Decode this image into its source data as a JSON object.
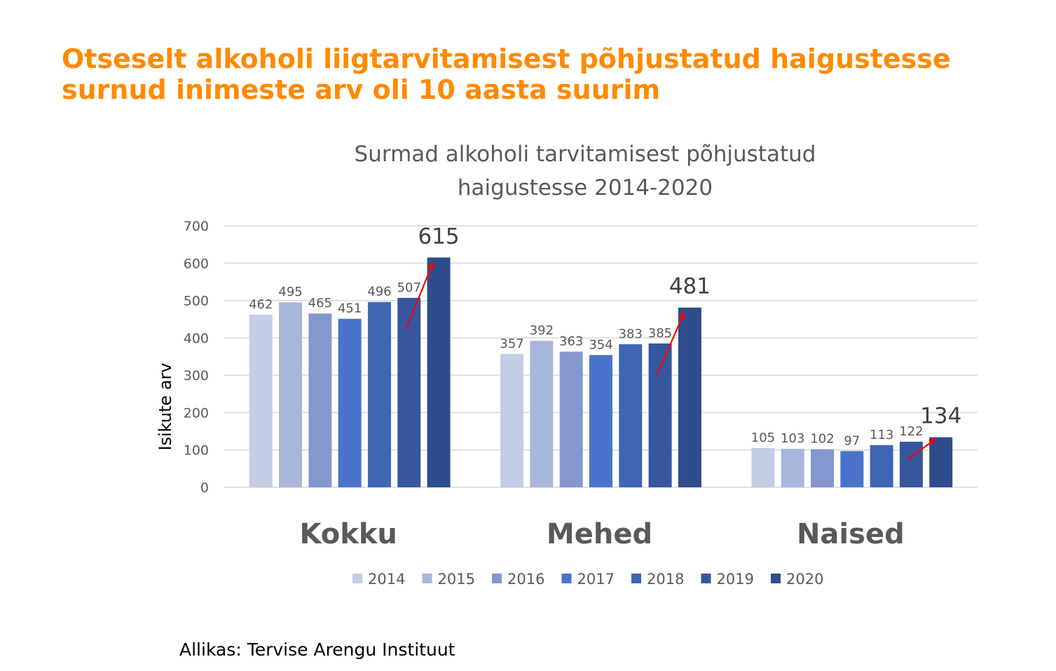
{
  "headline": "Otseselt alkoholi liigtarvitamisest põhjustatud haigustesse surnud inimeste arv oli 10 aasta suurim",
  "source": "Allikas: Tervise Arengu Instituut",
  "colors": {
    "headline": "#ff8a00",
    "trend_arrow": "#ff0000",
    "grid": "#d9d9d9",
    "title_text": "#595959",
    "tick_text": "#595959"
  },
  "chart_data": {
    "type": "bar",
    "title_lines": [
      "Surmad alkoholi tarvitamisest põhjustatud",
      "haigustesse 2014-2020"
    ],
    "ylabel": "Isikute arv",
    "xlabel": "",
    "ylim": [
      0,
      700
    ],
    "yticks": [
      0,
      100,
      200,
      300,
      400,
      500,
      600,
      700
    ],
    "grid": true,
    "legend_position": "bottom",
    "categories": [
      "Kokku",
      "Mehed",
      "Naised"
    ],
    "series": [
      {
        "name": "2014",
        "color": "#c3cde6",
        "values": [
          462,
          357,
          105
        ]
      },
      {
        "name": "2015",
        "color": "#a9b6dc",
        "values": [
          495,
          392,
          103
        ]
      },
      {
        "name": "2016",
        "color": "#8497cf",
        "values": [
          465,
          363,
          102
        ]
      },
      {
        "name": "2017",
        "color": "#4a74cc",
        "values": [
          451,
          354,
          97
        ]
      },
      {
        "name": "2018",
        "color": "#3e66b3",
        "values": [
          496,
          383,
          113
        ]
      },
      {
        "name": "2019",
        "color": "#36579e",
        "values": [
          507,
          385,
          122
        ]
      },
      {
        "name": "2020",
        "color": "#2f4d8d",
        "values": [
          615,
          481,
          134
        ]
      }
    ],
    "annotations": [
      {
        "text": "trend arrow",
        "category": "Kokku",
        "highlight_series": "2020"
      },
      {
        "text": "trend arrow",
        "category": "Mehed",
        "highlight_series": "2020"
      },
      {
        "text": "trend arrow",
        "category": "Naised",
        "highlight_series": "2020"
      }
    ]
  }
}
